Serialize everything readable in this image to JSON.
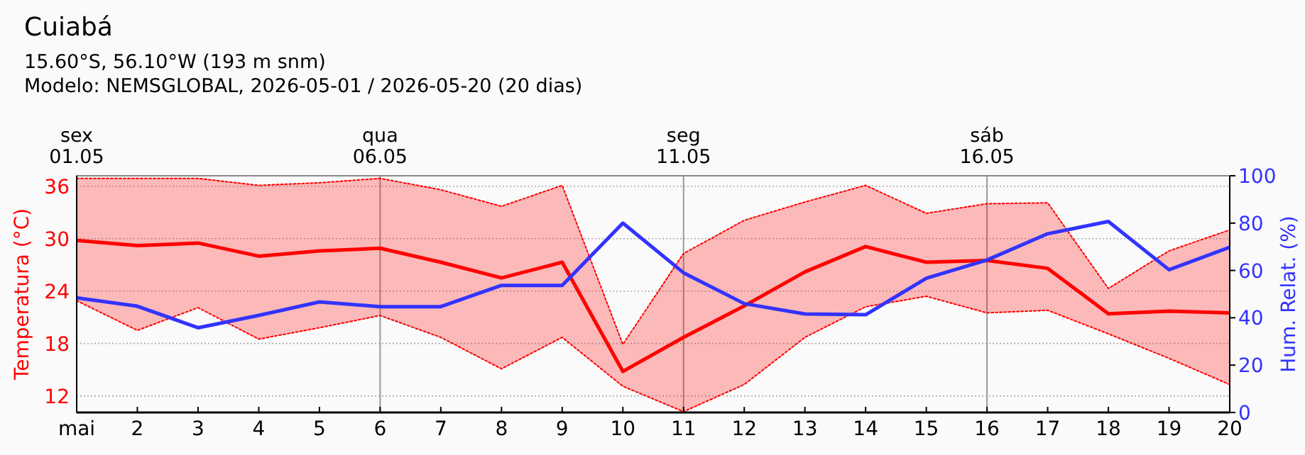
{
  "chart_data": {
    "type": "line",
    "title": "Cuiabá",
    "subtitle": "15.60°S, 56.10°W (193 m snm)\nModelo: NEMSGLOBAL, 2026-05-01 / 2026-05-20 (20 dias)",
    "x": [
      1,
      2,
      3,
      4,
      5,
      6,
      7,
      8,
      9,
      10,
      11,
      12,
      13,
      14,
      15,
      16,
      17,
      18,
      19,
      20
    ],
    "xlim": [
      1,
      20
    ],
    "xticks": [
      {
        "value": 1,
        "label": "mai"
      },
      2,
      3,
      4,
      5,
      6,
      7,
      8,
      9,
      10,
      11,
      12,
      13,
      14,
      15,
      16,
      17,
      18,
      19,
      20
    ],
    "ylim": [
      10.1,
      37.2
    ],
    "yticks": [
      12,
      18,
      24,
      30,
      36
    ],
    "y2lim": [
      0,
      100
    ],
    "y2ticks": [
      0,
      20,
      40,
      60,
      80,
      100
    ],
    "ylabel": "Temperatura (°C)",
    "y2label": "Hum. Relat. (%)",
    "grid": "y",
    "annotations": [
      "sex\n01.05"
    ],
    "ref_lines": [
      {
        "axis": "x",
        "value": 6,
        "label": "qua\n06.05",
        "color": "#999999"
      },
      {
        "axis": "x",
        "value": 11,
        "label": "seg\n11.05",
        "color": "#999999"
      },
      {
        "axis": "x",
        "value": 16,
        "label": "sáb\n16.05",
        "color": "#999999"
      }
    ],
    "series": [
      {
        "color": "#ff0000",
        "values": [
          29.8,
          29.2,
          29.5,
          28.0,
          28.6,
          28.9,
          27.3,
          25.5,
          27.3,
          14.8,
          18.7,
          22.3,
          26.2,
          29.1,
          27.3,
          27.5,
          26.6,
          21.4,
          21.7,
          21.5
        ],
        "lower": [
          22.9,
          19.5,
          22.1,
          18.5,
          19.8,
          21.2,
          18.7,
          15.1,
          18.7,
          13.1,
          10.2,
          13.3,
          18.7,
          22.2,
          23.4,
          21.5,
          21.8,
          19.1,
          16.3,
          13.3
        ],
        "upper": [
          36.9,
          36.9,
          36.9,
          36.1,
          36.4,
          36.9,
          35.6,
          33.7,
          36.1,
          17.9,
          28.3,
          32.1,
          34.2,
          36.1,
          32.9,
          34.0,
          34.1,
          24.3,
          28.6,
          31.0
        ]
      },
      {
        "line_style": "dotted",
        "color": "#ff0000",
        "values": [
          22.9,
          19.5,
          22.1,
          18.5,
          19.8,
          21.2,
          18.7,
          15.1,
          18.7,
          13.1,
          10.2,
          13.3,
          18.7,
          22.2,
          23.4,
          21.5,
          21.8,
          19.1,
          16.3,
          13.3
        ]
      },
      {
        "line_style": "dotted",
        "color": "#ff0000",
        "values": [
          36.9,
          36.9,
          36.9,
          36.1,
          36.4,
          36.9,
          35.6,
          33.7,
          36.1,
          17.9,
          28.3,
          32.1,
          34.2,
          36.1,
          32.9,
          34.0,
          34.1,
          24.3,
          28.6,
          31.0
        ]
      },
      {
        "axis": "y2",
        "color": "#3333ff",
        "values": [
          48.4,
          44.9,
          35.8,
          41.0,
          46.7,
          44.7,
          44.7,
          53.7,
          53.7,
          80.0,
          59.0,
          46.0,
          41.6,
          41.3,
          56.7,
          64.4,
          75.5,
          80.7,
          60.3,
          69.8
        ]
      }
    ]
  }
}
